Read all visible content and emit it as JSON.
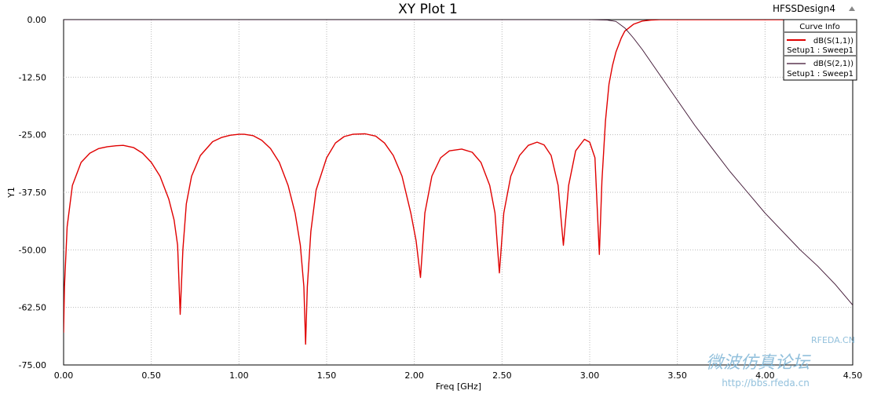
{
  "header": {
    "title": "XY Plot 1",
    "design_name": "HFSSDesign4"
  },
  "axes": {
    "x_label": "Freq [GHz]",
    "y_label": "Y1",
    "x_range": [
      0.0,
      4.5
    ],
    "y_range": [
      -75.0,
      0.0
    ],
    "x_ticks": [
      "0.00",
      "0.50",
      "1.00",
      "1.50",
      "2.00",
      "2.50",
      "3.00",
      "3.50",
      "4.00",
      "4.50"
    ],
    "y_ticks": [
      "0.00",
      "-12.50",
      "-25.00",
      "-37.50",
      "-50.00",
      "-62.50",
      "-75.00"
    ]
  },
  "legend": {
    "title": "Curve Info",
    "entries": [
      {
        "name": "dB(S(1,1))",
        "setup": "Setup1 : Sweep1",
        "color": "#e00000"
      },
      {
        "name": "dB(S(2,1))",
        "setup": "Setup1 : Sweep1",
        "color": "#3a0f2e"
      }
    ]
  },
  "watermark": {
    "brand": "RFEDA.CN",
    "cn_text": "微波仿真论坛",
    "url": "http://bbs.rfeda.cn"
  },
  "chart_data": {
    "type": "line",
    "title": "XY Plot 1",
    "xlabel": "Freq [GHz]",
    "ylabel": "Y1",
    "xlim": [
      0.0,
      4.5
    ],
    "ylim": [
      -75.0,
      0.0
    ],
    "grid": true,
    "legend_position": "top-right",
    "series": [
      {
        "name": "dB(S(1,1))",
        "color": "#e00000",
        "x": [
          0.0,
          0.005,
          0.02,
          0.05,
          0.1,
          0.15,
          0.2,
          0.25,
          0.3,
          0.34,
          0.4,
          0.45,
          0.5,
          0.55,
          0.6,
          0.63,
          0.65,
          0.665,
          0.68,
          0.7,
          0.73,
          0.78,
          0.85,
          0.9,
          0.95,
          1.0,
          1.03,
          1.08,
          1.13,
          1.18,
          1.23,
          1.28,
          1.32,
          1.35,
          1.37,
          1.38,
          1.39,
          1.41,
          1.44,
          1.5,
          1.55,
          1.6,
          1.65,
          1.72,
          1.78,
          1.83,
          1.88,
          1.93,
          1.98,
          2.01,
          2.035,
          2.06,
          2.1,
          2.15,
          2.2,
          2.27,
          2.33,
          2.38,
          2.43,
          2.46,
          2.485,
          2.51,
          2.55,
          2.6,
          2.65,
          2.7,
          2.74,
          2.78,
          2.82,
          2.85,
          2.88,
          2.92,
          2.97,
          3.0,
          3.03,
          3.055,
          3.07,
          3.09,
          3.11,
          3.13,
          3.15,
          3.18,
          3.2,
          3.25,
          3.3,
          3.35,
          3.4,
          3.5,
          3.7,
          4.0,
          4.3,
          4.5
        ],
        "y": [
          -68.0,
          -58.0,
          -45.0,
          -36.0,
          -31.0,
          -29.0,
          -28.0,
          -27.6,
          -27.4,
          -27.3,
          -27.8,
          -29.0,
          -31.0,
          -34.0,
          -39.0,
          -43.5,
          -49.0,
          -64.0,
          -50.0,
          -40.0,
          -34.0,
          -29.5,
          -26.5,
          -25.6,
          -25.1,
          -24.9,
          -24.9,
          -25.2,
          -26.2,
          -28.0,
          -31.0,
          -36.0,
          -42.0,
          -49.0,
          -58.0,
          -70.5,
          -58.0,
          -46.0,
          -37.0,
          -30.0,
          -26.8,
          -25.4,
          -24.9,
          -24.8,
          -25.3,
          -26.8,
          -29.5,
          -34.0,
          -42.0,
          -48.0,
          -56.0,
          -42.0,
          -34.0,
          -30.0,
          -28.5,
          -28.1,
          -28.8,
          -31.0,
          -36.0,
          -42.0,
          -55.0,
          -42.0,
          -34.0,
          -29.5,
          -27.3,
          -26.6,
          -27.2,
          -29.5,
          -36.0,
          -49.0,
          -36.0,
          -28.5,
          -26.0,
          -26.6,
          -30.0,
          -51.0,
          -35.0,
          -22.0,
          -14.0,
          -10.0,
          -7.0,
          -4.0,
          -2.5,
          -1.0,
          -0.3,
          -0.1,
          0.0,
          0.0,
          0.0,
          0.0,
          0.0,
          0.0
        ]
      },
      {
        "name": "dB(S(2,1))",
        "color": "#3a0f2e",
        "x": [
          0.0,
          0.5,
          1.0,
          2.0,
          2.5,
          3.0,
          3.1,
          3.15,
          3.2,
          3.25,
          3.3,
          3.4,
          3.5,
          3.6,
          3.7,
          3.8,
          3.9,
          4.0,
          4.1,
          4.2,
          4.3,
          4.4,
          4.5
        ],
        "y": [
          0.0,
          0.0,
          0.0,
          0.0,
          0.0,
          0.0,
          -0.1,
          -0.4,
          -1.8,
          -4.0,
          -6.5,
          -12.0,
          -17.5,
          -23.0,
          -28.0,
          -33.0,
          -37.5,
          -42.0,
          -46.0,
          -50.0,
          -53.5,
          -57.5,
          -62.0
        ]
      }
    ]
  }
}
